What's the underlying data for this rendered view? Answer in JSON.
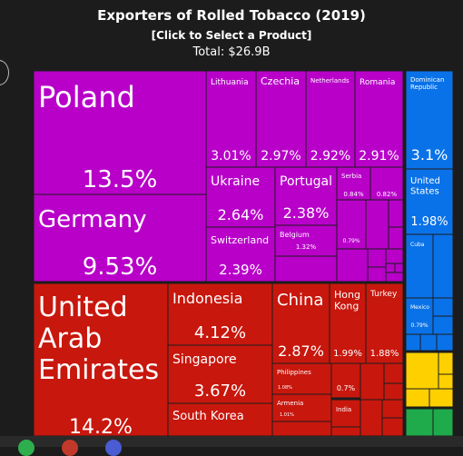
{
  "header": {
    "title": "Exporters of Rolled Tobacco (2019)",
    "select_link": "[Click to Select a Product]",
    "total": "Total: $26.9B"
  },
  "colors": {
    "europe": "#b800c9",
    "asia": "#c8170d",
    "americas": "#0a72e8",
    "africa": "#ffd000",
    "oceania": "#1faa4c"
  },
  "chart_data": {
    "type": "treemap",
    "title": "Exporters of Rolled Tobacco (2019)",
    "total": "$26.9B",
    "items": [
      {
        "name": "Poland",
        "share": 13.5,
        "region": "europe"
      },
      {
        "name": "Germany",
        "share": 9.53,
        "region": "europe"
      },
      {
        "name": "Lithuania",
        "share": 3.01,
        "region": "europe"
      },
      {
        "name": "Czechia",
        "share": 2.97,
        "region": "europe"
      },
      {
        "name": "Netherlands",
        "share": 2.92,
        "region": "europe"
      },
      {
        "name": "Romania",
        "share": 2.91,
        "region": "europe"
      },
      {
        "name": "Ukraine",
        "share": 2.64,
        "region": "europe"
      },
      {
        "name": "Portugal",
        "share": 2.38,
        "region": "europe"
      },
      {
        "name": "Serbia",
        "share": 0.84,
        "region": "europe"
      },
      {
        "name": "",
        "share": 0.82,
        "region": "europe"
      },
      {
        "name": "Switzerland",
        "share": 2.39,
        "region": "europe"
      },
      {
        "name": "Belgium",
        "share": 1.32,
        "region": "europe"
      },
      {
        "name": "",
        "share": 0.79,
        "region": "europe"
      },
      {
        "name": "United Arab Emirates",
        "share": 14.2,
        "region": "asia"
      },
      {
        "name": "Indonesia",
        "share": 4.12,
        "region": "asia"
      },
      {
        "name": "Singapore",
        "share": 3.67,
        "region": "asia"
      },
      {
        "name": "South Korea",
        "share": null,
        "region": "asia"
      },
      {
        "name": "China",
        "share": 2.87,
        "region": "asia"
      },
      {
        "name": "Hong Kong",
        "share": 1.99,
        "region": "asia"
      },
      {
        "name": "Turkey",
        "share": 1.88,
        "region": "asia"
      },
      {
        "name": "Philippines",
        "share": 1.08,
        "region": "asia"
      },
      {
        "name": "",
        "share": 0.7,
        "region": "asia"
      },
      {
        "name": "Armenia",
        "share": 1.01,
        "region": "asia"
      },
      {
        "name": "India",
        "share": null,
        "region": "asia"
      },
      {
        "name": "Dominican Republic",
        "share": 3.1,
        "region": "americas"
      },
      {
        "name": "United States",
        "share": 1.98,
        "region": "americas"
      },
      {
        "name": "Cuba",
        "share": null,
        "region": "americas"
      },
      {
        "name": "Mexico",
        "share": 0.79,
        "region": "americas"
      }
    ]
  }
}
